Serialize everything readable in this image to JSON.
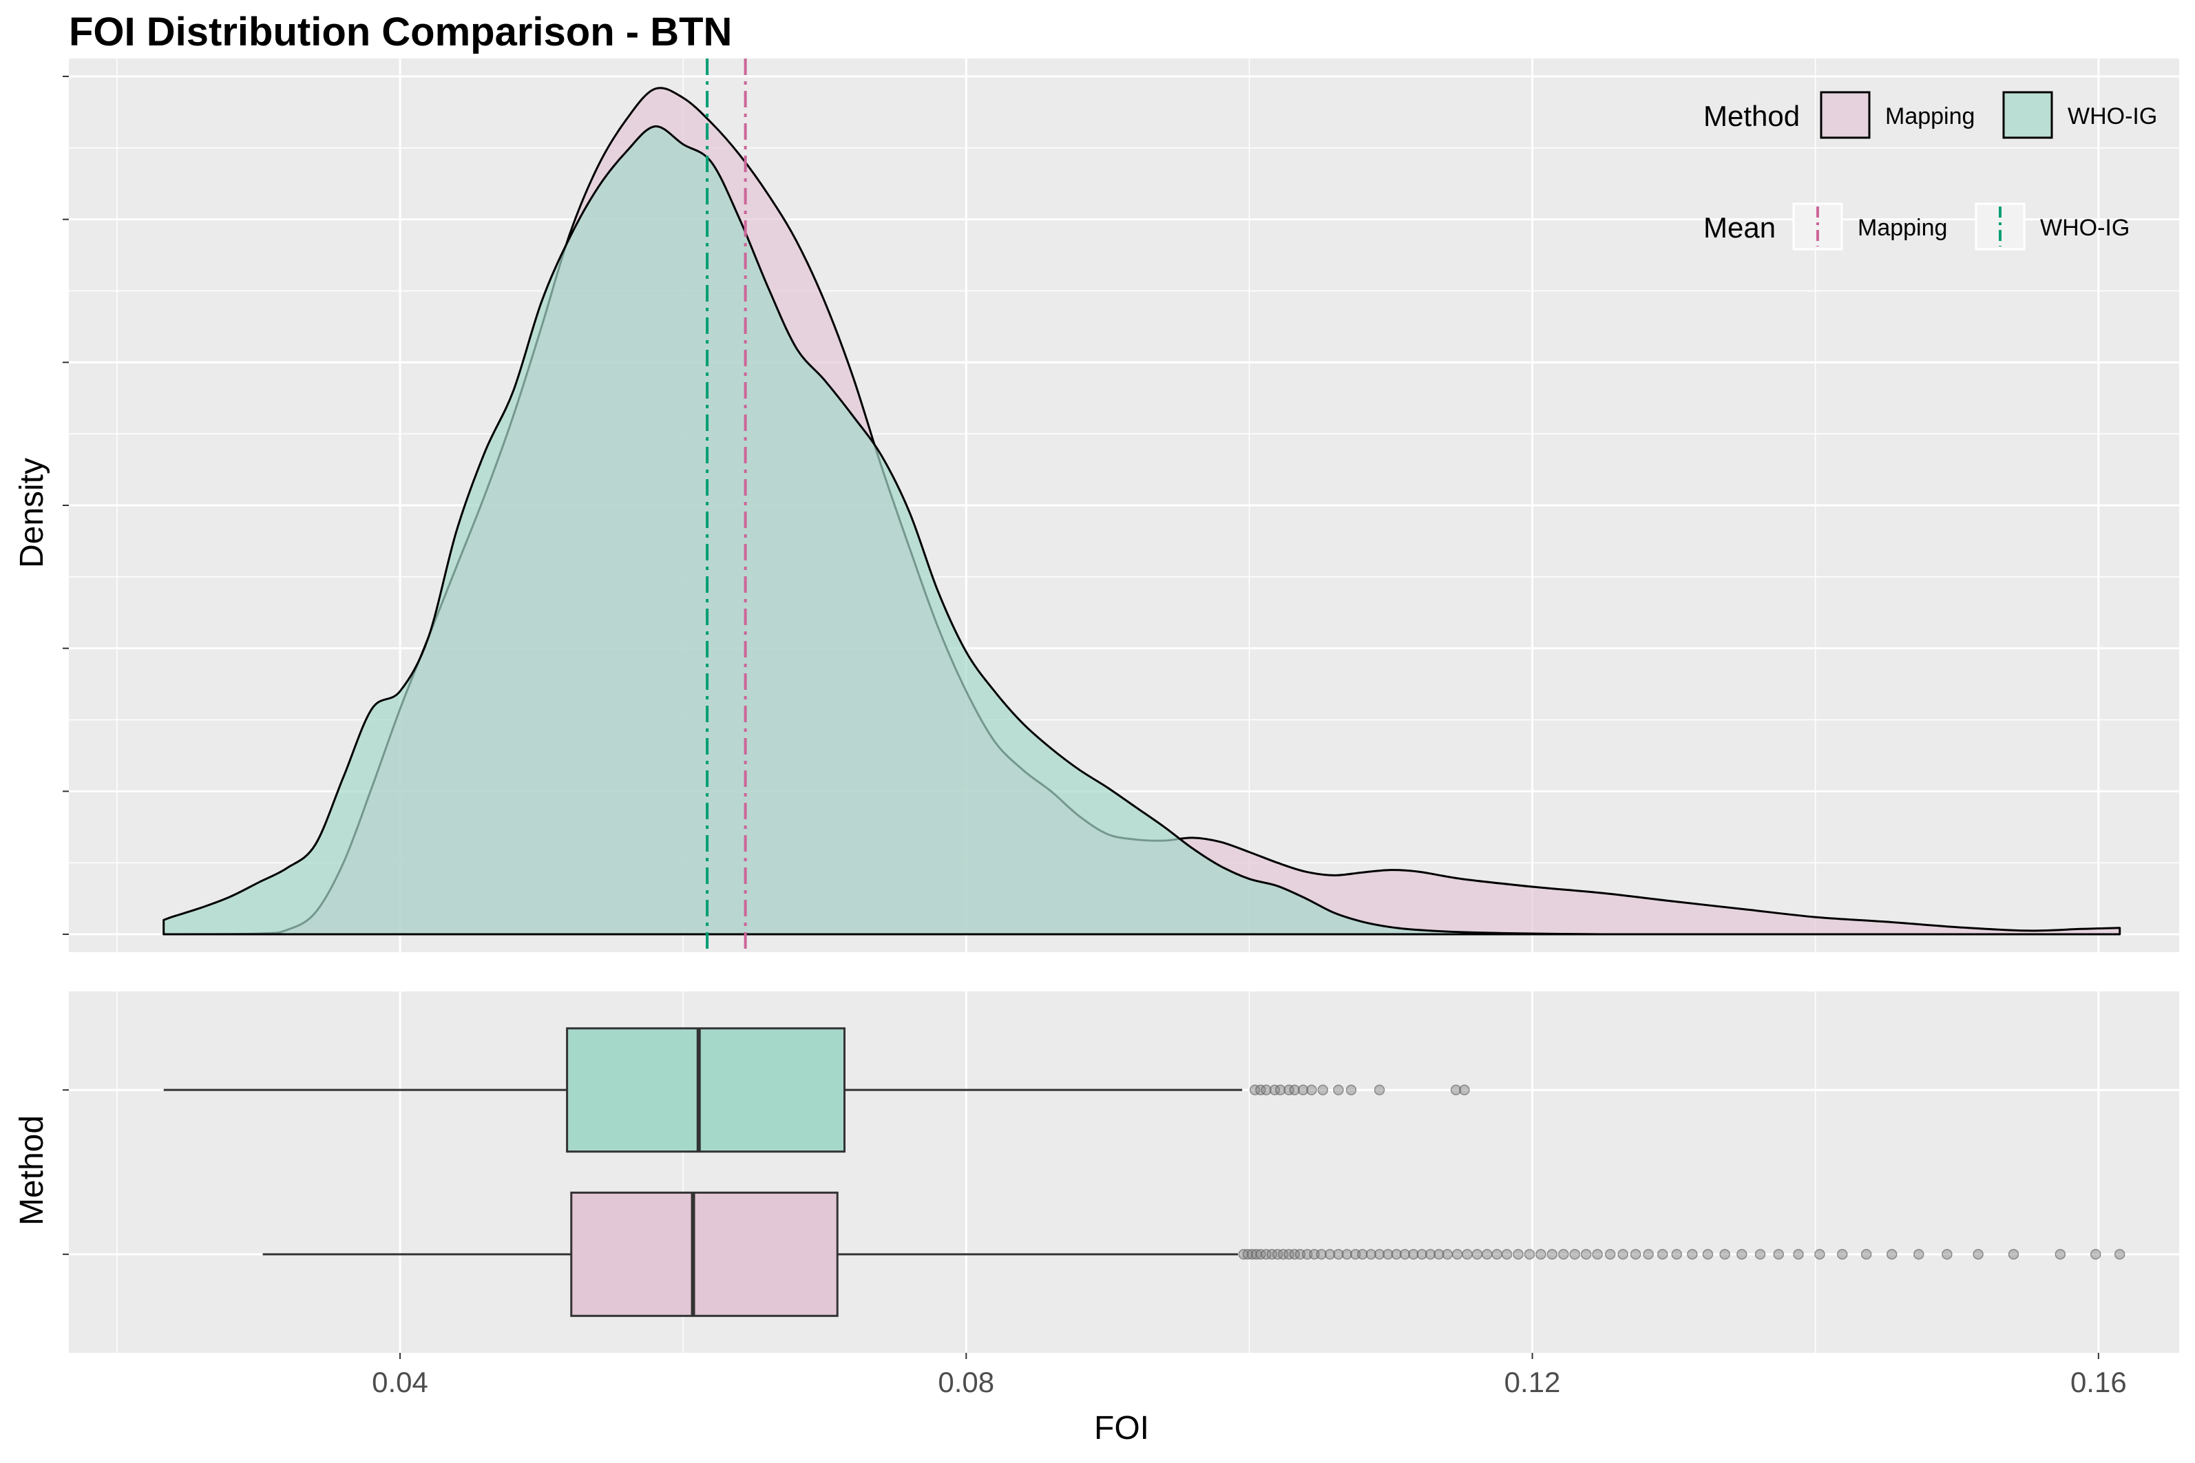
{
  "chart_data": {
    "title": "FOI Distribution Comparison - BTN",
    "colors": {
      "mapping_fill": "#E2C7D6",
      "who_fill": "#A6D8CA",
      "mapping_line": "#CC6699",
      "who_line": "#009E73",
      "panel_bg": "#EBEBEB",
      "grid": "#FFFFFF",
      "outlier": "#7F7F7F"
    },
    "density": {
      "type": "area",
      "xlabel": "",
      "ylabel": "Density",
      "xlim": [
        0.0166,
        0.1657
      ],
      "ylim": [
        -0.5,
        24.5
      ],
      "x_breaks": [
        0.04,
        0.08,
        0.12,
        0.16
      ],
      "y_breaks": [
        0,
        4,
        8,
        12,
        16,
        20,
        24
      ],
      "series": [
        {
          "name": "Mapping",
          "key": "mapping",
          "x": [
            0.0233,
            0.03,
            0.032,
            0.034,
            0.036,
            0.038,
            0.04,
            0.042,
            0.044,
            0.046,
            0.048,
            0.05,
            0.052,
            0.054,
            0.056,
            0.058,
            0.06,
            0.062,
            0.064,
            0.066,
            0.068,
            0.07,
            0.072,
            0.074,
            0.076,
            0.078,
            0.08,
            0.082,
            0.084,
            0.086,
            0.088,
            0.09,
            0.092,
            0.094,
            0.096,
            0.098,
            0.1,
            0.102,
            0.104,
            0.106,
            0.108,
            0.11,
            0.112,
            0.115,
            0.12,
            0.125,
            0.13,
            0.135,
            0.14,
            0.145,
            0.15,
            0.155,
            0.1588,
            0.1615
          ],
          "y": [
            0.0,
            0.02,
            0.12,
            0.6,
            2.0,
            4.1,
            6.3,
            8.3,
            10.3,
            12.3,
            14.5,
            17.0,
            19.6,
            21.5,
            22.8,
            23.65,
            23.4,
            22.7,
            21.8,
            20.7,
            19.4,
            17.7,
            15.6,
            13.1,
            10.8,
            8.6,
            6.8,
            5.4,
            4.6,
            4.0,
            3.3,
            2.8,
            2.65,
            2.62,
            2.7,
            2.58,
            2.3,
            2.0,
            1.75,
            1.65,
            1.73,
            1.8,
            1.75,
            1.55,
            1.33,
            1.15,
            0.92,
            0.7,
            0.48,
            0.35,
            0.2,
            0.1,
            0.15,
            0.18
          ]
        },
        {
          "name": "WHO-IG",
          "key": "who",
          "x": [
            0.0233,
            0.024,
            0.026,
            0.028,
            0.03,
            0.032,
            0.034,
            0.036,
            0.038,
            0.04,
            0.042,
            0.044,
            0.046,
            0.048,
            0.05,
            0.052,
            0.054,
            0.056,
            0.058,
            0.06,
            0.062,
            0.064,
            0.066,
            0.068,
            0.07,
            0.072,
            0.074,
            0.076,
            0.078,
            0.08,
            0.082,
            0.084,
            0.086,
            0.088,
            0.09,
            0.092,
            0.094,
            0.096,
            0.098,
            0.1,
            0.102,
            0.104,
            0.106,
            0.108,
            0.11,
            0.112,
            0.115,
            0.12,
            0.125
          ],
          "y": [
            0.4,
            0.5,
            0.75,
            1.05,
            1.45,
            1.85,
            2.5,
            4.4,
            6.3,
            6.8,
            8.3,
            11.3,
            13.5,
            15.2,
            17.7,
            19.5,
            20.9,
            21.9,
            22.6,
            22.1,
            21.6,
            20.0,
            18.1,
            16.4,
            15.5,
            14.5,
            13.4,
            11.8,
            9.6,
            7.9,
            6.8,
            5.9,
            5.2,
            4.6,
            4.1,
            3.55,
            3.0,
            2.4,
            1.9,
            1.55,
            1.35,
            1.0,
            0.6,
            0.35,
            0.2,
            0.12,
            0.06,
            0.02,
            0.0
          ]
        }
      ],
      "means": [
        {
          "name": "Mapping",
          "key": "mapping",
          "value": 0.0644
        },
        {
          "name": "WHO-IG",
          "key": "who",
          "value": 0.0617
        }
      ]
    },
    "boxplot": {
      "type": "box",
      "xlabel": "FOI",
      "ylabel": "Method",
      "categories": [
        "Mapping",
        "WHO-IG"
      ],
      "series": [
        {
          "name": "WHO-IG",
          "key": "who",
          "position": 2,
          "whisker_low": 0.0233,
          "q1": 0.0518,
          "median": 0.0611,
          "q3": 0.0714,
          "whisker_high": 0.0995,
          "outliers": [
            0.1004,
            0.1008,
            0.1012,
            0.1018,
            0.1022,
            0.1028,
            0.1032,
            0.1038,
            0.1044,
            0.1052,
            0.1063,
            0.1072,
            0.1092,
            0.1146,
            0.1152
          ]
        },
        {
          "name": "Mapping",
          "key": "mapping",
          "position": 1,
          "whisker_low": 0.0303,
          "q1": 0.0521,
          "median": 0.0607,
          "q3": 0.0709,
          "whisker_high": 0.0992,
          "outliers": [
            0.0996,
            0.0999,
            0.1002,
            0.1005,
            0.1008,
            0.1012,
            0.1016,
            0.102,
            0.1024,
            0.1028,
            0.1032,
            0.1036,
            0.1041,
            0.1046,
            0.1051,
            0.1057,
            0.1063,
            0.1069,
            0.1075,
            0.108,
            0.1086,
            0.1092,
            0.1098,
            0.1104,
            0.111,
            0.1116,
            0.1122,
            0.1128,
            0.1134,
            0.114,
            0.1147,
            0.1154,
            0.1161,
            0.1168,
            0.1175,
            0.1182,
            0.119,
            0.1198,
            0.1206,
            0.1214,
            0.1222,
            0.123,
            0.1238,
            0.1246,
            0.1255,
            0.1264,
            0.1273,
            0.1282,
            0.1292,
            0.1302,
            0.1313,
            0.1324,
            0.1336,
            0.1348,
            0.1361,
            0.1374,
            0.1388,
            0.1403,
            0.1419,
            0.1436,
            0.1454,
            0.1473,
            0.1493,
            0.1515,
            0.154,
            0.1573,
            0.1598,
            0.1615
          ]
        }
      ]
    },
    "legend": {
      "placement": "top-right",
      "fill_title": "Method",
      "fill_items": [
        {
          "label": "Mapping",
          "key": "mapping"
        },
        {
          "label": "WHO-IG",
          "key": "who"
        }
      ],
      "mean_title": "Mean",
      "mean_items": [
        {
          "label": "Mapping",
          "key": "mapping"
        },
        {
          "label": "WHO-IG",
          "key": "who"
        }
      ]
    }
  }
}
